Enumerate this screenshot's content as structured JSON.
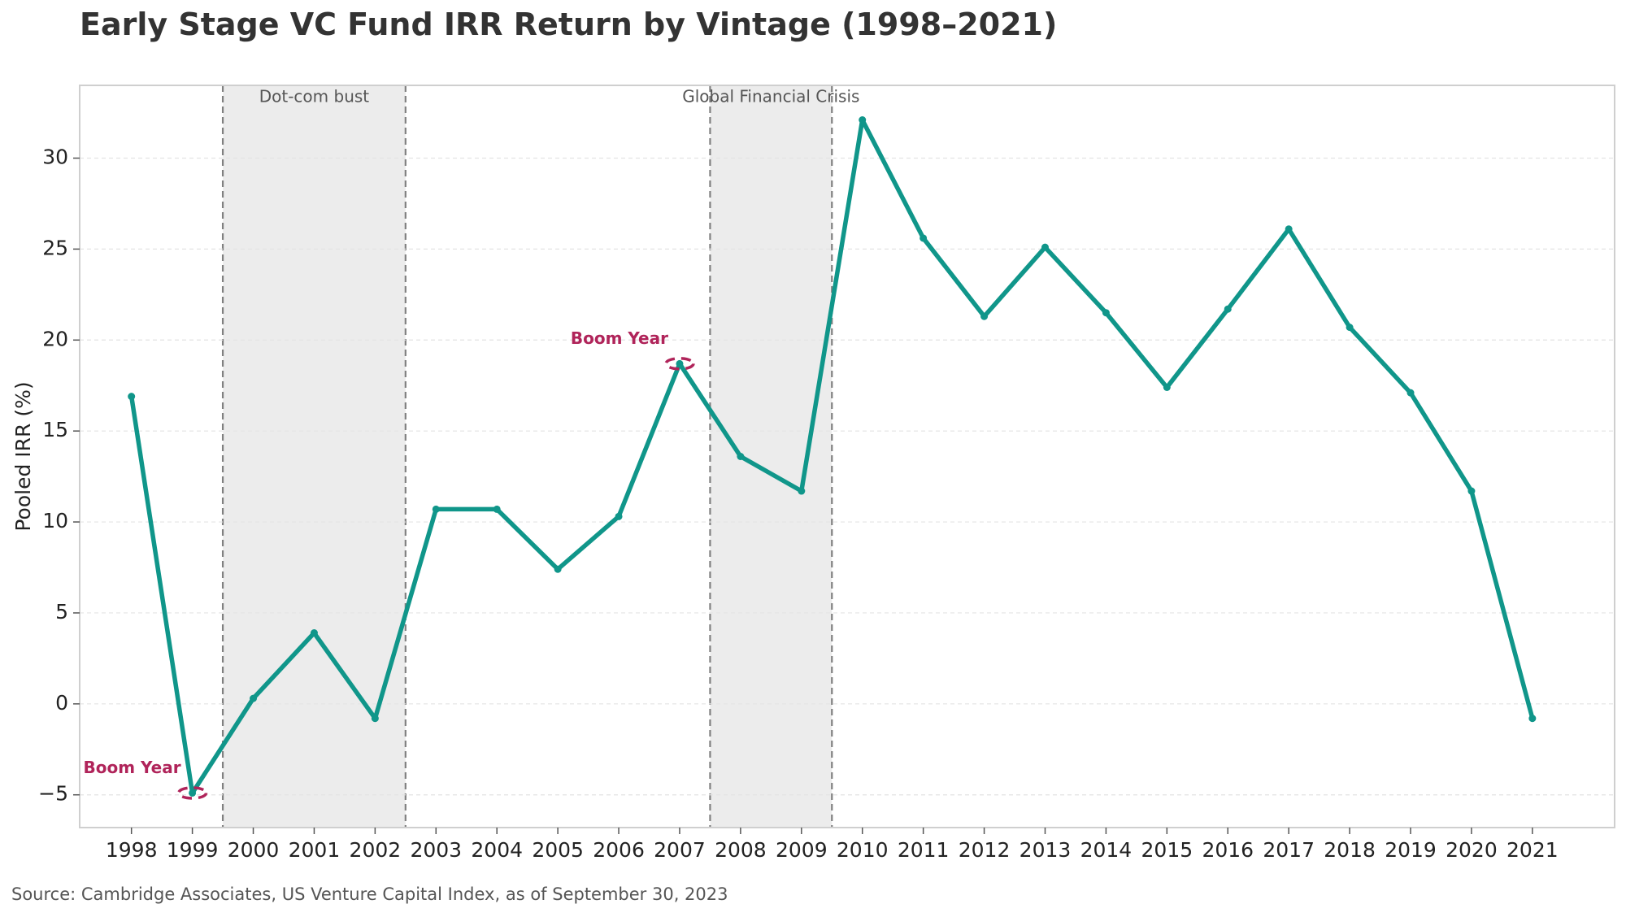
{
  "title": "Early Stage VC Fund IRR Return by Vintage (1998–2021)",
  "source": "Source: Cambridge Associates, US Venture Capital Index, as of September 30, 2023",
  "colors": {
    "line": "#10968a",
    "boom": "#b0245a",
    "shade": "#ececec",
    "event_line": "#808080",
    "grid": "#e4e4e4",
    "frame": "#cfcfcf"
  },
  "chart_data": {
    "type": "line",
    "title": "Early Stage VC Fund IRR Return by Vintage (1998–2021)",
    "xlabel": "",
    "ylabel": "Pooled IRR (%)",
    "ylim": [
      -6.8,
      34.0
    ],
    "yticks": [
      -5,
      0,
      5,
      10,
      15,
      20,
      25,
      30
    ],
    "grid": "horizontal",
    "categories": [
      "1998",
      "1999",
      "2000",
      "2001",
      "2002",
      "2003",
      "2004",
      "2005",
      "2006",
      "2007",
      "2008",
      "2009",
      "2010",
      "2011",
      "2012",
      "2013",
      "2014",
      "2015",
      "2016",
      "2017",
      "2018",
      "2019",
      "2020",
      "2021"
    ],
    "series": [
      {
        "values": [
          16.9,
          -4.9,
          0.3,
          3.9,
          -0.8,
          10.7,
          10.7,
          7.4,
          10.3,
          18.7,
          13.6,
          11.7,
          32.1,
          25.6,
          21.3,
          25.1,
          21.5,
          17.4,
          21.7,
          26.1,
          20.7,
          17.1,
          11.7,
          -0.8
        ]
      }
    ],
    "shaded_periods": [
      {
        "label": "Dot-com bust",
        "start": 1999.5,
        "end": 2002.5
      },
      {
        "label": "Global Financial Crisis",
        "start": 2007.5,
        "end": 2009.5
      }
    ],
    "annotations": [
      {
        "text": "Boom Year",
        "x": "1999",
        "y": -4.9
      },
      {
        "text": "Boom Year",
        "x": "2007",
        "y": 18.7
      }
    ]
  }
}
